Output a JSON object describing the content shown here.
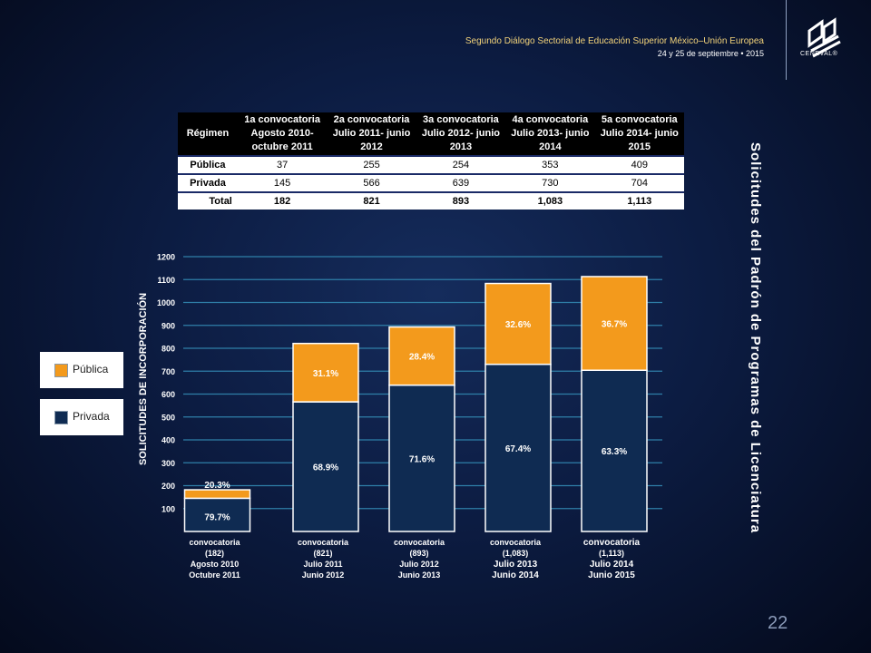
{
  "header": {
    "title": "Segundo Diálogo Sectorial de Educación Superior México–Unión Europea",
    "date": "24 y 25 de septiembre • 2015",
    "logo_text": "CENEVAL®"
  },
  "side_title": "Solicitudes del Padrón de Programas de Licenciatura",
  "page_number": "22",
  "table": {
    "headers": [
      "Régimen",
      "1a convocatoria Agosto 2010- octubre 2011",
      "2a convocatoria Julio 2011- junio 2012",
      "3a convocatoria Julio 2012- junio 2013",
      "4a convocatoria Julio 2013- junio 2014",
      "5a convocatoria Julio 2014- junio 2015"
    ],
    "rows": [
      [
        "Pública",
        "37",
        "255",
        "254",
        "353",
        "409"
      ],
      [
        "Privada",
        "145",
        "566",
        "639",
        "730",
        "704"
      ],
      [
        "Total",
        "182",
        "821",
        "893",
        "1,083",
        "1,113"
      ]
    ]
  },
  "legend": [
    {
      "label": "Pública",
      "color": "#f39a1c"
    },
    {
      "label": "Privada",
      "color": "#0f2b52"
    }
  ],
  "chart_data": {
    "type": "bar",
    "stacked": true,
    "ylabel": "SOLICITUDES DE INCORPORACIÓN",
    "ylim": [
      0,
      1200
    ],
    "yticks": [
      100,
      200,
      300,
      400,
      500,
      600,
      700,
      800,
      900,
      1000,
      1100,
      1200
    ],
    "grid": true,
    "categories": [
      [
        "convocatoria",
        "(182)",
        "Agosto 2010",
        "Octubre 2011"
      ],
      [
        "convocatoria",
        "(821)",
        "Julio 2011",
        "Junio 2012"
      ],
      [
        "convocatoria",
        "(893)",
        "Julio 2012",
        "Junio 2013"
      ],
      [
        "convocatoria",
        "(1,083)",
        "Julio 2013",
        "Junio 2014"
      ],
      [
        "convocatoria",
        "(1,113)",
        "Julio 2014",
        "Junio 2015"
      ]
    ],
    "series": [
      {
        "name": "Privada",
        "color": "#0f2b52",
        "values": [
          145,
          566,
          639,
          730,
          704
        ],
        "labels": [
          "79.7%",
          "68.9%",
          "71.6%",
          "67.4%",
          "63.3%"
        ]
      },
      {
        "name": "Pública",
        "color": "#f39a1c",
        "values": [
          37,
          255,
          254,
          353,
          409
        ],
        "labels": [
          "20.3%",
          "31.1%",
          "28.4%",
          "32.6%",
          "36.7%"
        ]
      }
    ]
  }
}
